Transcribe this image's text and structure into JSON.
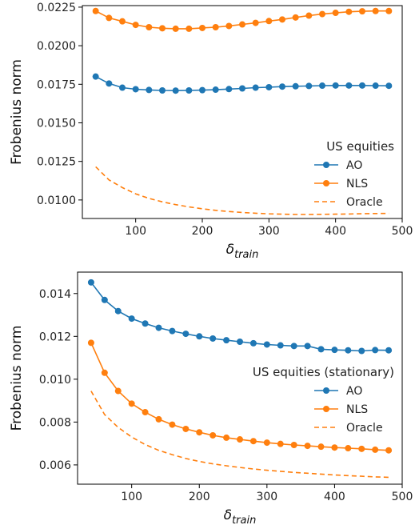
{
  "chart_data": [
    {
      "type": "line",
      "title": "",
      "xlabel": "δ",
      "xlabel_sub": "train",
      "ylabel": "Frobenius norm",
      "xlim": [
        20,
        500
      ],
      "ylim": [
        0.0088,
        0.0226
      ],
      "xticks": [
        100,
        200,
        300,
        400,
        500
      ],
      "xtick_labels": [
        "100",
        "200",
        "300",
        "400",
        "500"
      ],
      "yticks": [
        0.01,
        0.0125,
        0.015,
        0.0175,
        0.02,
        0.0225
      ],
      "ytick_labels": [
        "0.0100",
        "0.0125",
        "0.0150",
        "0.0175",
        "0.0200",
        "0.0225"
      ],
      "legend_title": "US equities",
      "legend_position": "lower-right",
      "x": [
        40,
        60,
        80,
        100,
        120,
        140,
        160,
        180,
        200,
        220,
        240,
        260,
        280,
        300,
        320,
        340,
        360,
        380,
        400,
        420,
        440,
        460,
        480
      ],
      "series": [
        {
          "name": "AO",
          "color": "#1f77b4",
          "style": "solid-marker",
          "values": [
            0.018,
            0.01755,
            0.01728,
            0.01718,
            0.01713,
            0.0171,
            0.01709,
            0.0171,
            0.01712,
            0.01715,
            0.01719,
            0.01723,
            0.01728,
            0.01731,
            0.01735,
            0.01737,
            0.01739,
            0.01741,
            0.01742,
            0.01742,
            0.01742,
            0.01741,
            0.0174
          ]
        },
        {
          "name": "NLS",
          "color": "#ff7f0e",
          "style": "solid-marker",
          "values": [
            0.02225,
            0.0218,
            0.02158,
            0.02135,
            0.0212,
            0.02113,
            0.0211,
            0.0211,
            0.02115,
            0.0212,
            0.02128,
            0.02138,
            0.02148,
            0.0216,
            0.0217,
            0.02183,
            0.02195,
            0.02205,
            0.02213,
            0.0222,
            0.02223,
            0.02225,
            0.02225
          ]
        },
        {
          "name": "Oracle",
          "color": "#ff7f0e",
          "style": "dashed",
          "values": [
            0.01215,
            0.0113,
            0.0108,
            0.0104,
            0.0101,
            0.00988,
            0.0097,
            0.00955,
            0.00943,
            0.00933,
            0.00925,
            0.00919,
            0.00914,
            0.0091,
            0.00908,
            0.00906,
            0.00906,
            0.00907,
            0.00908,
            0.00909,
            0.00911,
            0.00912,
            0.00913
          ]
        }
      ]
    },
    {
      "type": "line",
      "title": "",
      "xlabel": "δ",
      "xlabel_sub": "train",
      "ylabel": "Frobenius norm",
      "xlim": [
        20,
        500
      ],
      "ylim": [
        0.0051,
        0.015
      ],
      "xticks": [
        100,
        200,
        300,
        400,
        500
      ],
      "xtick_labels": [
        "100",
        "200",
        "300",
        "400",
        "500"
      ],
      "yticks": [
        0.006,
        0.008,
        0.01,
        0.012,
        0.014
      ],
      "ytick_labels": [
        "0.006",
        "0.008",
        "0.010",
        "0.012",
        "0.014"
      ],
      "legend_title": "US equities (stationary)",
      "legend_position": "center-right",
      "x": [
        40,
        60,
        80,
        100,
        120,
        140,
        160,
        180,
        200,
        220,
        240,
        260,
        280,
        300,
        320,
        340,
        360,
        380,
        400,
        420,
        440,
        460,
        480
      ],
      "series": [
        {
          "name": "AO",
          "color": "#1f77b4",
          "style": "solid-marker",
          "values": [
            0.01452,
            0.0137,
            0.01318,
            0.01283,
            0.0126,
            0.0124,
            0.01225,
            0.01212,
            0.012,
            0.0119,
            0.01182,
            0.01175,
            0.01168,
            0.01162,
            0.01158,
            0.01155,
            0.01155,
            0.0114,
            0.01137,
            0.01135,
            0.01132,
            0.01136,
            0.01135
          ]
        },
        {
          "name": "NLS",
          "color": "#ff7f0e",
          "style": "solid-marker",
          "values": [
            0.0117,
            0.0103,
            0.00945,
            0.00886,
            0.00846,
            0.00813,
            0.00788,
            0.00768,
            0.00752,
            0.00738,
            0.00727,
            0.00719,
            0.00711,
            0.00704,
            0.00698,
            0.00693,
            0.00689,
            0.00685,
            0.00681,
            0.00678,
            0.00675,
            0.00671,
            0.00668
          ]
        },
        {
          "name": "Oracle",
          "color": "#ff7f0e",
          "style": "dashed",
          "values": [
            0.00945,
            0.00835,
            0.00775,
            0.0073,
            0.00695,
            0.00668,
            0.00648,
            0.0063,
            0.00616,
            0.00605,
            0.00596,
            0.00588,
            0.00581,
            0.00575,
            0.0057,
            0.00565,
            0.00561,
            0.00557,
            0.00553,
            0.0055,
            0.00547,
            0.00544,
            0.00542
          ]
        }
      ]
    }
  ]
}
